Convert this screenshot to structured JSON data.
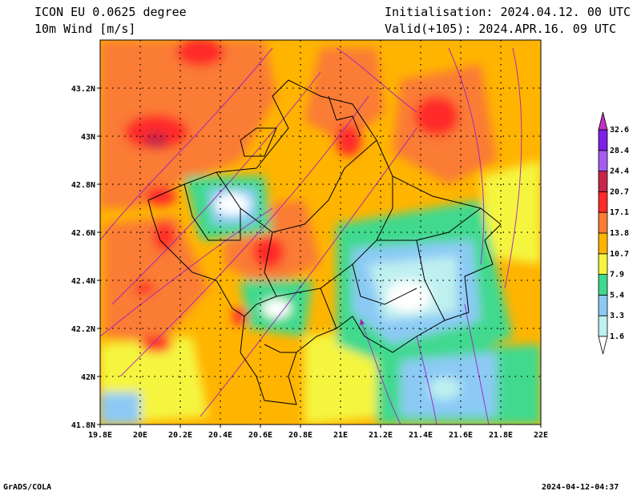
{
  "header": {
    "model_title": "ICON EU 0.0625 degree",
    "variable": "10m Wind [m/s]",
    "initialisation": "Initialisation: 2024.04.12. 00 UTC",
    "valid": "Valid(+105): 2024.APR.16. 09 UTC"
  },
  "footer": {
    "credit": "GrADS/COLA",
    "timestamp": "2024-04-12-04:37"
  },
  "chart_data": {
    "type": "heatmap",
    "x_ticks": [
      "19.8E",
      "20E",
      "20.2E",
      "20.4E",
      "20.6E",
      "20.8E",
      "21E",
      "21.2E",
      "21.4E",
      "21.6E",
      "21.8E",
      "22E"
    ],
    "y_ticks": [
      "41.8N",
      "42N",
      "42.2N",
      "42.4N",
      "42.6N",
      "42.8N",
      "43N",
      "43.2N"
    ],
    "xlim": [
      19.8,
      22.0
    ],
    "ylim": [
      41.8,
      43.4
    ],
    "grid": true,
    "colorbar": {
      "levels": [
        "1.6",
        "3.3",
        "5.4",
        "7.9",
        "10.7",
        "13.8",
        "17.1",
        "20.7",
        "24.4",
        "28.4",
        "32.6"
      ],
      "colors": [
        "#ffffff",
        "#bff0f0",
        "#8ccaf5",
        "#3fd98e",
        "#f5f53f",
        "#ffb400",
        "#fa7c35",
        "#ff2a2a",
        "#c6254a",
        "#a55cf0",
        "#7f1fe6",
        "#c42ec4"
      ]
    }
  }
}
